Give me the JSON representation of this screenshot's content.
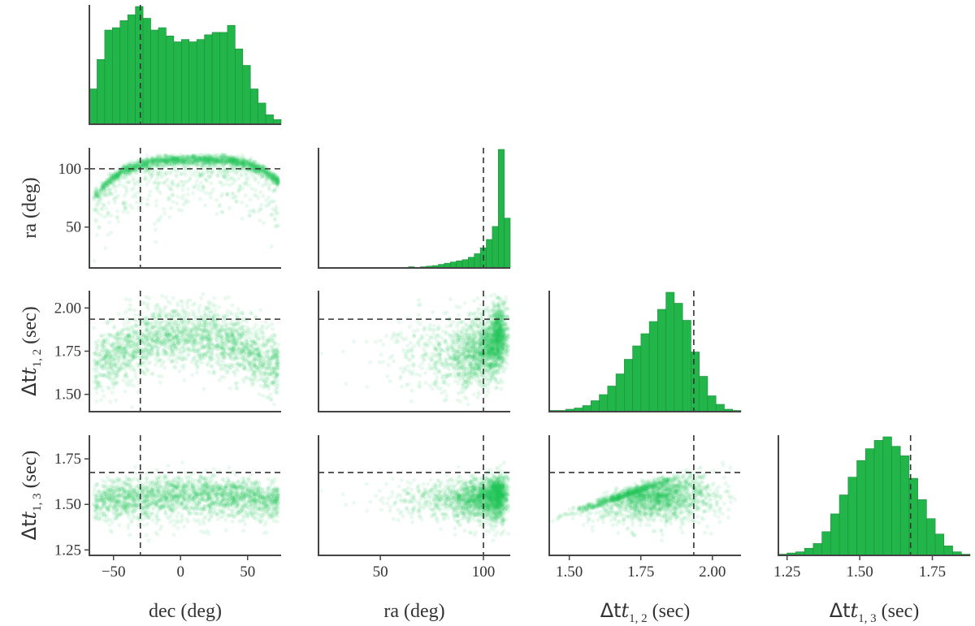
{
  "chart_data": {
    "type": "scatter",
    "kind": "corner-plot",
    "colors": {
      "samples": "#22c55e",
      "bars": "#22b54a",
      "truth_line": "#333333",
      "axes": "#444444"
    },
    "parameters": [
      {
        "id": "dec",
        "label": "dec (deg)",
        "range": [
          -68,
          75
        ],
        "ticks": [
          -50,
          0,
          50
        ],
        "tick_labels": [
          "−50",
          "0",
          "50"
        ],
        "truth": -30
      },
      {
        "id": "ra",
        "label": "ra (deg)",
        "range": [
          20,
          113
        ],
        "ticks": [
          50,
          100
        ],
        "tick_labels": [
          "50",
          "100"
        ],
        "truth": 100
      },
      {
        "id": "dt12",
        "label_prefix": "Δt",
        "label_sub": "1, 2",
        "label_suffix": " (sec)",
        "range": [
          1.43,
          2.1
        ],
        "ticks": [
          1.5,
          1.75,
          2.0
        ],
        "tick_labels": [
          "1.50",
          "1.75",
          "2.00"
        ],
        "truth": 1.935
      },
      {
        "id": "dt13",
        "label_prefix": "Δt",
        "label_sub": "1, 3",
        "label_suffix": " (sec)",
        "range": [
          1.22,
          1.88
        ],
        "ticks": [
          1.25,
          1.5,
          1.75
        ],
        "tick_labels": [
          "1.25",
          "1.50",
          "1.75"
        ],
        "truth": 1.675
      }
    ],
    "row_ranges": {
      "ra": {
        "range": [
          15,
          118
        ],
        "ticks": [
          50,
          100
        ],
        "tick_labels": [
          "50",
          "100"
        ]
      },
      "dt12": {
        "range": [
          1.4,
          2.1
        ],
        "ticks": [
          1.5,
          1.75,
          2.0
        ],
        "tick_labels": [
          "1.50",
          "1.75",
          "2.00"
        ]
      },
      "dt13": {
        "range": [
          1.22,
          1.88
        ],
        "ticks": [
          1.25,
          1.5,
          1.75
        ],
        "tick_labels": [
          "1.25",
          "1.50",
          "1.75"
        ]
      }
    },
    "histograms": {
      "dec": [
        30,
        55,
        80,
        82,
        88,
        93,
        100,
        90,
        80,
        82,
        75,
        70,
        72,
        70,
        72,
        76,
        78,
        78,
        84,
        64,
        50,
        30,
        18,
        8,
        4
      ],
      "ra": [
        0,
        0,
        0,
        0,
        0,
        0,
        0,
        0,
        0,
        0,
        0,
        0,
        0,
        0,
        0,
        1,
        0.5,
        1,
        1.5,
        2,
        3,
        4,
        5,
        6,
        7,
        9,
        12,
        17,
        24,
        35,
        100,
        42
      ],
      "dt12": [
        1,
        1,
        2,
        3,
        5,
        9,
        14,
        21,
        31,
        43,
        54,
        64,
        74,
        84,
        98,
        89,
        75,
        49,
        29,
        13,
        6,
        2,
        1
      ],
      "dt13": [
        1,
        2,
        3,
        6,
        10,
        20,
        35,
        51,
        66,
        80,
        90,
        97,
        100,
        92,
        84,
        65,
        47,
        31,
        18,
        8,
        3,
        1
      ]
    },
    "xlabels": [
      "dec (deg)",
      "ra (deg)",
      "Δt1, 2 (sec)",
      "Δt1, 3 (sec)"
    ],
    "ylabels": [
      "ra (deg)",
      "Δt1, 2 (sec)",
      "Δt1, 3 (sec)"
    ]
  }
}
